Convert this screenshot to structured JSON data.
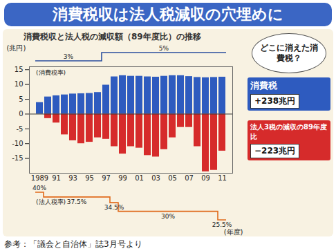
{
  "chart_data": {
    "type": "bar",
    "title": "消費税収は法人税減収の穴埋めに",
    "subtitle": "消費税収と法人税の減収額（89年度比）の推移",
    "y_label": "(兆円)",
    "x_label": "(年度)",
    "categories": [
      "1989",
      null,
      "91",
      null,
      "93",
      null,
      "95",
      null,
      "97",
      null,
      "99",
      null,
      "01",
      null,
      "03",
      null,
      "05",
      null,
      "07",
      null,
      "09",
      null,
      "11"
    ],
    "series": [
      {
        "name": "消費税",
        "color": "#2e5bbf",
        "total_label": "+238兆円",
        "values": [
          3.9,
          5.8,
          6.2,
          6.5,
          6.8,
          6.9,
          7.0,
          7.3,
          9.8,
          12.6,
          13.0,
          12.8,
          12.8,
          12.6,
          12.5,
          12.8,
          13.0,
          13.0,
          12.7,
          12.4,
          12.3,
          12.4,
          12.5
        ]
      },
      {
        "name": "法人3税の減収の89年度比",
        "color": "#d62b2b",
        "total_label": "−223兆円",
        "values": [
          0,
          -1.5,
          -3,
          -7,
          -9,
          -10,
          -9.5,
          -8,
          -8.5,
          -11,
          -13.5,
          -11,
          -11.5,
          -14,
          -14.5,
          -12,
          -8,
          -4.5,
          -4.5,
          -11,
          -19.5,
          -19,
          -12.5
        ]
      }
    ],
    "tax_rates": [
      {
        "name": "(消費税率)",
        "color": "#2b4f9e",
        "values": [
          3,
          3,
          3,
          3,
          3,
          3,
          3,
          3,
          5,
          5,
          5,
          5,
          5,
          5,
          5,
          5,
          5,
          5,
          5,
          5,
          5,
          5,
          5
        ],
        "value_labels": [
          "3%",
          null,
          null,
          null,
          null,
          null,
          null,
          null,
          "5%",
          null,
          null,
          null,
          null,
          null,
          null,
          null,
          null,
          null,
          null,
          null,
          null,
          null,
          null
        ]
      },
      {
        "name": "(法人税率)",
        "color": "#e06a1b",
        "values": [
          40,
          37.5,
          37.5,
          37.5,
          37.5,
          37.5,
          37.5,
          37.5,
          37.5,
          34.5,
          30,
          30,
          30,
          30,
          30,
          30,
          30,
          30,
          30,
          30,
          30,
          30,
          25.5
        ],
        "value_labels": [
          "40%",
          "37.5%",
          null,
          null,
          null,
          null,
          null,
          null,
          null,
          "34.5%",
          "30%",
          null,
          null,
          null,
          null,
          null,
          null,
          null,
          null,
          null,
          null,
          null,
          "25.5%"
        ]
      }
    ],
    "callout": "どこに消えた消費税？",
    "source": "参考：「議会と自治体」誌3月号より",
    "ylim": [
      -20,
      16
    ],
    "yticks": [
      -15,
      -10,
      -5,
      0,
      5,
      10,
      15
    ],
    "grid": false
  }
}
